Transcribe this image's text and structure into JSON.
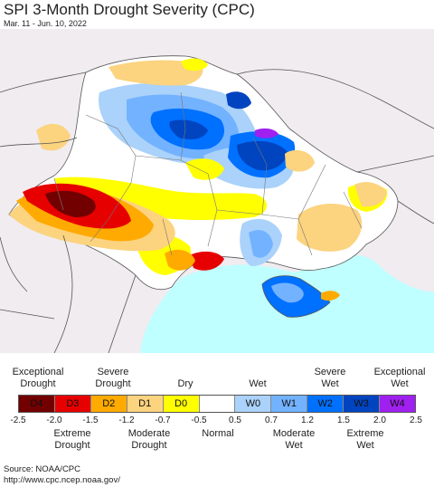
{
  "title": "SPI 3-Month Drought Severity (CPC)",
  "subtitle": "Mar. 11 - Jun. 10, 2022",
  "legend": {
    "top_labels": [
      {
        "text": [
          "Exceptional",
          "Drought"
        ]
      },
      {
        "text": [
          "Severe",
          "Drought"
        ]
      },
      {
        "text": [
          "Dry"
        ]
      },
      {
        "text": [
          "Wet"
        ]
      },
      {
        "text": [
          "Severe",
          "Wet"
        ]
      },
      {
        "text": [
          "Exceptional",
          "Wet"
        ]
      }
    ],
    "classes": [
      {
        "label": "D4",
        "color": "#730000"
      },
      {
        "label": "D3",
        "color": "#e60000"
      },
      {
        "label": "D2",
        "color": "#ffaa00"
      },
      {
        "label": "D1",
        "color": "#fcd37f"
      },
      {
        "label": "D0",
        "color": "#ffff00"
      },
      {
        "label": "",
        "color": "#ffffff"
      },
      {
        "label": "W0",
        "color": "#aad2fa"
      },
      {
        "label": "W1",
        "color": "#73b2ff"
      },
      {
        "label": "W2",
        "color": "#0070ff"
      },
      {
        "label": "W3",
        "color": "#0044c0"
      },
      {
        "label": "W4",
        "color": "#a020f0"
      }
    ],
    "ticks": [
      "-2.5",
      "-2.0",
      "-1.5",
      "-1.2",
      "-0.7",
      "-0.5",
      "0.5",
      "0.7",
      "1.2",
      "1.5",
      "2.0",
      "2.5"
    ],
    "bottom_labels": [
      {
        "text": [
          "Extreme",
          "Drought"
        ]
      },
      {
        "text": [
          "Moderate",
          "Drought"
        ]
      },
      {
        "text": [
          "Normal"
        ]
      },
      {
        "text": [
          "Moderate",
          "Wet"
        ]
      },
      {
        "text": [
          "Extreme",
          "Wet"
        ]
      }
    ]
  },
  "source": {
    "line1": "Source: NOAA/CPC",
    "line2": "http://www.cpc.ncep.noaa.gov/"
  },
  "map": {
    "background_color": "#f0ecf0",
    "sea_color": "#bfffff",
    "border_color": "#555555"
  }
}
